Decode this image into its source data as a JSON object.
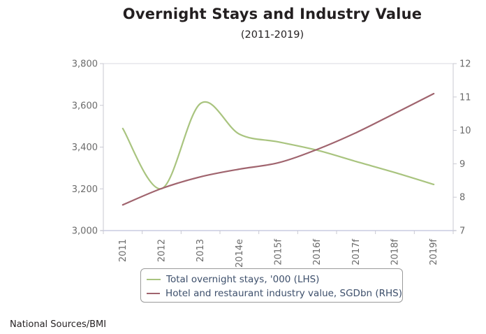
{
  "chart_data": {
    "type": "line",
    "title": "Overnight Stays and Industry Value",
    "subtitle": "(2011-2019)",
    "categories": [
      "2011",
      "2012",
      "2013",
      "2014e",
      "2015f",
      "2016f",
      "2017f",
      "2018f",
      "2019f"
    ],
    "series": [
      {
        "name": "Total overnight stays, '000 (LHS)",
        "axis": "left",
        "color": "#a9c47f",
        "smooth": true,
        "values": [
          3489,
          3201,
          3609,
          3462,
          3425,
          3385,
          3331,
          3278,
          3221
        ]
      },
      {
        "name": "Hotel and restaurant industry value, SGDbn (RHS)",
        "axis": "right",
        "color": "#a0646e",
        "smooth": true,
        "values": [
          7.77,
          8.26,
          8.61,
          8.84,
          9.03,
          9.43,
          9.93,
          10.51,
          11.1
        ]
      }
    ],
    "y_left": {
      "label": "",
      "ylim": [
        3000,
        3800
      ],
      "ticks": [
        3000,
        3200,
        3400,
        3600,
        3800
      ],
      "tick_labels": [
        "3,000",
        "3,200",
        "3,400",
        "3,600",
        "3,800"
      ]
    },
    "y_right": {
      "label": "",
      "ylim": [
        7,
        12
      ],
      "ticks": [
        7,
        8,
        9,
        10,
        11,
        12
      ],
      "tick_labels": [
        "7",
        "8",
        "9",
        "10",
        "11",
        "12"
      ]
    },
    "xlabel": "",
    "x_tick_rotation": "vertical",
    "grid": false,
    "legend_placement": "bottom-center"
  },
  "source": "National Sources/BMI"
}
